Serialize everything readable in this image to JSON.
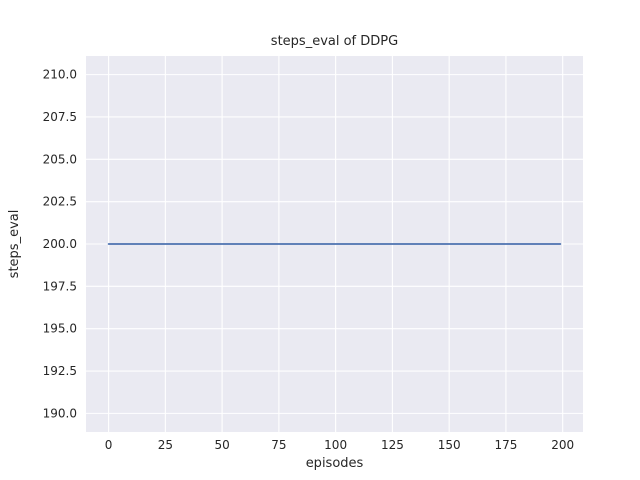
{
  "chart_data": {
    "type": "line",
    "title": "steps_eval of DDPG",
    "xlabel": "episodes",
    "ylabel": "steps_eval",
    "xlim": [
      -9.95,
      208.95
    ],
    "ylim": [
      188.9,
      211.1
    ],
    "x_tick_values": [
      0,
      25,
      50,
      75,
      100,
      125,
      150,
      175,
      200
    ],
    "x_tick_labels": [
      "0",
      "25",
      "50",
      "75",
      "100",
      "125",
      "150",
      "175",
      "200"
    ],
    "y_tick_values": [
      190.0,
      192.5,
      195.0,
      197.5,
      200.0,
      202.5,
      205.0,
      207.5,
      210.0
    ],
    "y_tick_labels": [
      "190.0",
      "192.5",
      "195.0",
      "197.5",
      "200.0",
      "202.5",
      "205.0",
      "207.5",
      "210.0"
    ],
    "grid": true,
    "legend": "none",
    "series": [
      {
        "name": "steps_eval",
        "x": [
          0,
          199
        ],
        "y": [
          200.0,
          200.0
        ],
        "color": "#4c72b0",
        "line_width": 1.8
      }
    ],
    "colors": {
      "plot_background": "#eaeaf2",
      "figure_background": "#ffffff",
      "grid_line": "#ffffff",
      "text": "#262626"
    }
  }
}
